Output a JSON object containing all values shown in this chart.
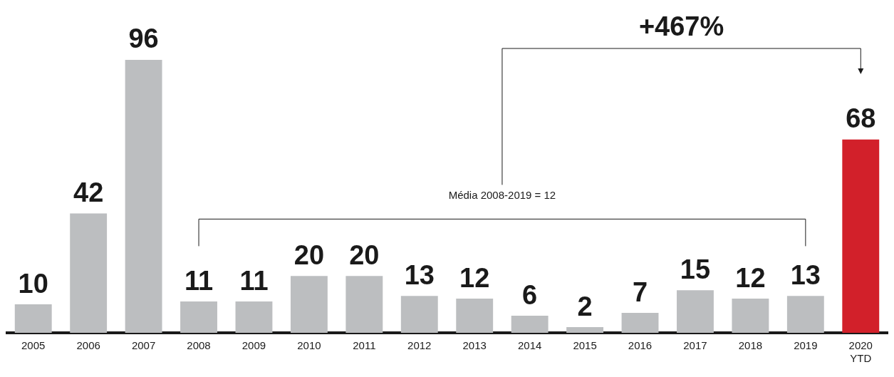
{
  "chart_data": {
    "type": "bar",
    "categories": [
      "2005",
      "2006",
      "2007",
      "2008",
      "2009",
      "2010",
      "2011",
      "2012",
      "2013",
      "2014",
      "2015",
      "2016",
      "2017",
      "2018",
      "2019",
      "2020 YTD"
    ],
    "values": [
      10,
      42,
      96,
      11,
      11,
      20,
      20,
      13,
      12,
      6,
      2,
      7,
      15,
      12,
      13,
      68
    ],
    "colors": [
      "#bcbec0",
      "#bcbec0",
      "#bcbec0",
      "#bcbec0",
      "#bcbec0",
      "#bcbec0",
      "#bcbec0",
      "#bcbec0",
      "#bcbec0",
      "#bcbec0",
      "#bcbec0",
      "#bcbec0",
      "#bcbec0",
      "#bcbec0",
      "#bcbec0",
      "#d2202a"
    ],
    "data_labels": true,
    "grid": false,
    "legend": false,
    "tick_labels": "x",
    "annotations": [
      "Média 2008-2019 = 12",
      "+467%"
    ]
  }
}
